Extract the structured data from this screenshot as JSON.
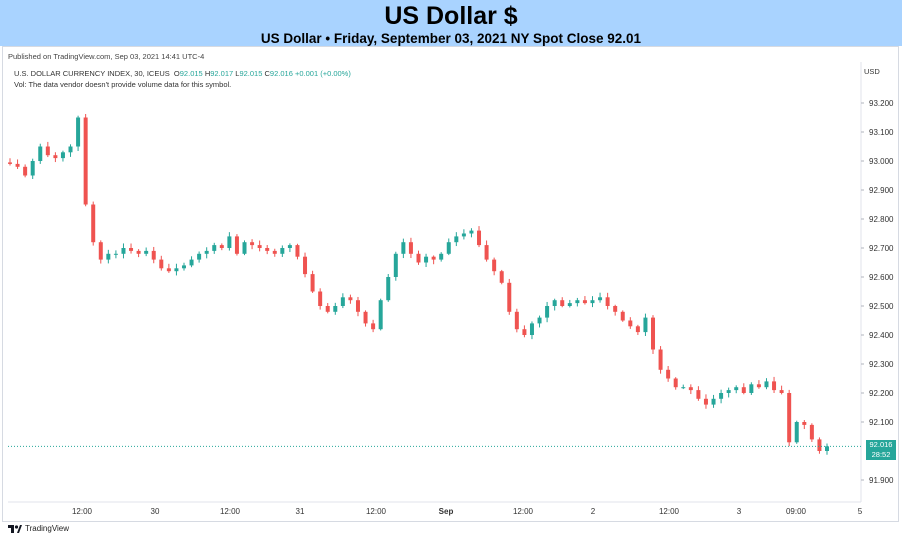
{
  "header": {
    "title": "US Dollar $",
    "subtitle": "US Dollar • Friday, September 03, 2021 NY Spot Close 92.01"
  },
  "published": "Published on TradingView.com, Sep 03, 2021 14:41 UTC-4",
  "legend": {
    "symbol": "U.S. DOLLAR CURRENCY INDEX, 30, ICEUS",
    "o_label": "O",
    "o_value": "92.015",
    "h_label": "H",
    "h_value": "92.017",
    "l_label": "L",
    "l_value": "92.015",
    "c_label": "C",
    "c_value": "92.016",
    "change": "+0.001 (+0.00%)",
    "vol_note": "Vol: The data vendor doesn't provide volume data for this symbol."
  },
  "currency": "USD",
  "price_tag": {
    "price": "92.016",
    "countdown": "28:52"
  },
  "branding": "TradingView",
  "colors": {
    "up": "#26a69a",
    "down": "#ef5350",
    "header_bg": "#a9d3ff"
  },
  "chart_data": {
    "type": "candlestick",
    "y_ticks": [
      "93.200",
      "93.100",
      "93.000",
      "92.900",
      "92.800",
      "92.700",
      "92.600",
      "92.500",
      "92.400",
      "92.300",
      "92.200",
      "92.100",
      "91.900"
    ],
    "y_range": [
      91.86,
      93.22
    ],
    "x_ticks": [
      "12:00",
      "30",
      "12:00",
      "31",
      "12:00",
      "Sep",
      "12:00",
      "2",
      "12:00",
      "3",
      "09:00",
      "5"
    ],
    "last_price": 92.016,
    "closes": [
      92.99,
      92.98,
      92.95,
      93.0,
      93.05,
      93.02,
      93.01,
      93.03,
      93.05,
      93.15,
      92.85,
      92.72,
      92.66,
      92.68,
      92.68,
      92.7,
      92.69,
      92.68,
      92.69,
      92.66,
      92.63,
      92.62,
      92.63,
      92.64,
      92.66,
      92.68,
      92.69,
      92.71,
      92.7,
      92.74,
      92.68,
      92.72,
      92.71,
      92.7,
      92.69,
      92.68,
      92.7,
      92.71,
      92.67,
      92.61,
      92.55,
      92.5,
      92.48,
      92.5,
      92.53,
      92.52,
      92.48,
      92.44,
      92.42,
      92.52,
      92.6,
      92.68,
      92.72,
      92.68,
      92.65,
      92.67,
      92.66,
      92.68,
      92.72,
      92.74,
      92.75,
      92.76,
      92.71,
      92.66,
      92.62,
      92.58,
      92.48,
      92.42,
      92.4,
      92.44,
      92.46,
      92.5,
      92.52,
      92.5,
      92.51,
      92.52,
      92.51,
      92.52,
      92.53,
      92.5,
      92.48,
      92.45,
      92.43,
      92.41,
      92.46,
      92.35,
      92.28,
      92.25,
      92.22,
      92.22,
      92.21,
      92.18,
      92.16,
      92.18,
      92.2,
      92.21,
      92.22,
      92.2,
      92.23,
      92.22,
      92.24,
      92.21,
      92.2,
      92.03,
      92.1,
      92.09,
      92.04,
      92.0,
      92.016
    ]
  }
}
